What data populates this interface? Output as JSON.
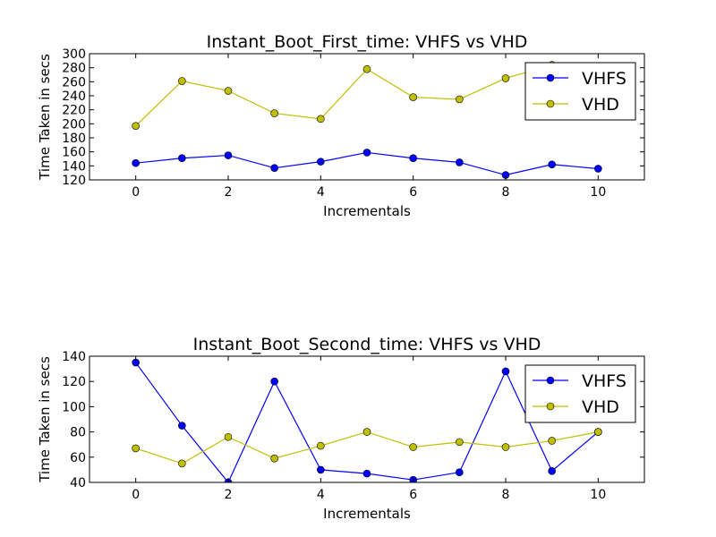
{
  "chart_data": [
    {
      "type": "line",
      "title": "Instant_Boot_First_time: VHFS vs VHD",
      "xlabel": "Incrementals",
      "ylabel": "Time Taken in secs",
      "xlim": [
        -1,
        11
      ],
      "ylim": [
        120,
        300
      ],
      "xticks": [
        0,
        2,
        4,
        6,
        8,
        10
      ],
      "yticks": [
        120,
        140,
        160,
        180,
        200,
        220,
        240,
        260,
        280,
        300
      ],
      "grid": false,
      "legend_position": "top-right",
      "x": [
        0,
        1,
        2,
        3,
        4,
        5,
        6,
        7,
        8,
        9,
        10
      ],
      "series": [
        {
          "name": "VHFS",
          "color": "#0000ff",
          "values": [
            144,
            151,
            155,
            137,
            146,
            159,
            151,
            145,
            127,
            142,
            136
          ]
        },
        {
          "name": "VHD",
          "color": "#bfbf00",
          "values": [
            197,
            261,
            247,
            215,
            207,
            278,
            238,
            235,
            265,
            284,
            null
          ]
        }
      ]
    },
    {
      "type": "line",
      "title": "Instant_Boot_Second_time: VHFS vs VHD",
      "xlabel": "Incrementals",
      "ylabel": "Time Taken in secs",
      "xlim": [
        -1,
        11
      ],
      "ylim": [
        40,
        140
      ],
      "xticks": [
        0,
        2,
        4,
        6,
        8,
        10
      ],
      "yticks": [
        40,
        60,
        80,
        100,
        120,
        140
      ],
      "grid": false,
      "legend_position": "top-right",
      "x": [
        0,
        1,
        2,
        3,
        4,
        5,
        6,
        7,
        8,
        9,
        10
      ],
      "series": [
        {
          "name": "VHFS",
          "color": "#0000ff",
          "values": [
            135,
            85,
            40,
            120,
            50,
            47,
            42,
            48,
            128,
            49,
            80
          ]
        },
        {
          "name": "VHD",
          "color": "#bfbf00",
          "values": [
            67,
            55,
            76,
            59,
            69,
            80,
            68,
            72,
            68,
            73,
            80
          ]
        }
      ]
    }
  ]
}
